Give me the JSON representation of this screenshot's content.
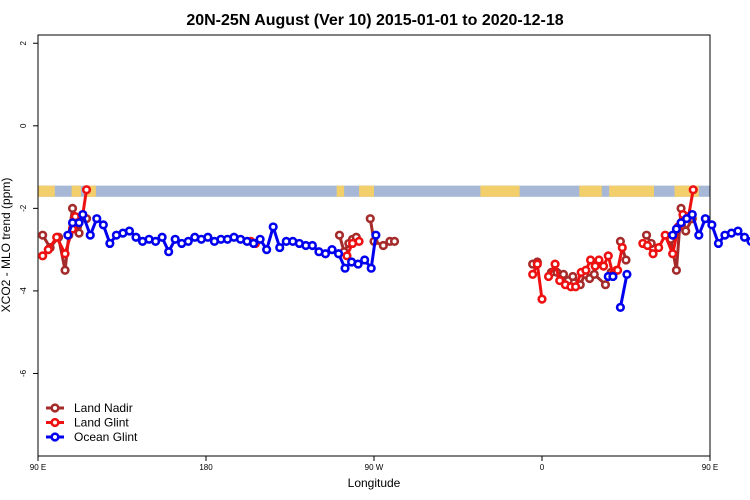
{
  "chart_data": {
    "type": "line",
    "title": "20N-25N August (Ver 10)   2015-01-01 to 2020-12-18",
    "xlabel": "Longitude",
    "ylabel": "XCO2 - MLO trend (ppm)",
    "xlim": [
      90,
      450
    ],
    "ylim": [
      -8,
      2.2
    ],
    "x_ticks": [
      {
        "value": 90,
        "label": "90 E"
      },
      {
        "value": 180,
        "label": "180"
      },
      {
        "value": 270,
        "label": "90 W"
      },
      {
        "value": 360,
        "label": "0"
      },
      {
        "value": 450,
        "label": "90 E"
      },
      {
        "value": 540,
        "label": "180"
      }
    ],
    "y_ticks": [
      {
        "value": 2,
        "label": "2"
      },
      {
        "value": 0,
        "label": "0"
      },
      {
        "value": -2,
        "label": "-2"
      },
      {
        "value": -4,
        "label": "-4"
      },
      {
        "value": -6,
        "label": "-6"
      }
    ],
    "land_band": {
      "y_top": -1.45,
      "y_bottom": -1.72,
      "ocean_color": "#a6b8d6",
      "land_color": "#f2cf6b"
    },
    "legend_position": "bottom-left",
    "series": [
      {
        "name": "Land Nadir",
        "color": "#a52a2a",
        "segments": [
          [
            [
              92.5,
              -2.65
            ],
            [
              96.5,
              -2.95
            ],
            [
              101,
              -2.7
            ],
            [
              104.5,
              -3.5
            ],
            [
              106.5,
              -2.65
            ],
            [
              108.5,
              -2.0
            ],
            [
              112,
              -2.6
            ],
            [
              114,
              -2.2
            ],
            [
              116,
              -2.25
            ]
          ],
          [
            [
              251.5,
              -2.65
            ],
            [
              254,
              -3.05
            ],
            [
              256.5,
              -2.85
            ],
            [
              258.5,
              -2.75
            ],
            [
              260.5,
              -2.7
            ]
          ],
          [
            [
              268,
              -2.25
            ],
            [
              270,
              -2.8
            ],
            [
              275,
              -2.9
            ],
            [
              278.5,
              -2.8
            ],
            [
              281,
              -2.8
            ]
          ],
          [
            [
              355,
              -3.35
            ],
            [
              357.5,
              -3.3
            ]
          ],
          [
            [
              365,
              -3.55
            ],
            [
              368,
              -3.55
            ],
            [
              371.5,
              -3.6
            ],
            [
              374,
              -3.75
            ],
            [
              376.5,
              -3.65
            ],
            [
              380.5,
              -3.85
            ],
            [
              383,
              -3.6
            ],
            [
              385.5,
              -3.7
            ],
            [
              388,
              -3.6
            ],
            [
              394,
              -3.85
            ],
            [
              397,
              -3.55
            ]
          ],
          [
            [
              402,
              -2.8
            ],
            [
              405,
              -3.25
            ]
          ],
          [
            [
              416,
              -2.65
            ],
            [
              418.5,
              -2.85
            ]
          ],
          [
            [
              429,
              -2.75
            ],
            [
              432,
              -3.5
            ],
            [
              434.5,
              -2.0
            ],
            [
              437,
              -2.55
            ],
            [
              440.5,
              -2.25
            ]
          ]
        ]
      },
      {
        "name": "Land Glint",
        "color": "#ee1111",
        "segments": [
          [
            [
              92.5,
              -3.15
            ],
            [
              95.5,
              -3.0
            ],
            [
              100,
              -2.7
            ],
            [
              104.5,
              -3.1
            ],
            [
              108.5,
              -2.5
            ],
            [
              110,
              -2.2
            ],
            [
              114,
              -2.15
            ],
            [
              116,
              -1.55
            ]
          ],
          [
            [
              204,
              -2.8
            ],
            [
              206.5,
              -2.85
            ]
          ],
          [
            [
              255.5,
              -3.15
            ],
            [
              258.5,
              -2.85
            ],
            [
              262,
              -2.8
            ]
          ],
          [
            [
              355,
              -3.6
            ],
            [
              357.5,
              -3.35
            ],
            [
              360,
              -4.2
            ]
          ],
          [
            [
              363.5,
              -3.65
            ],
            [
              367,
              -3.35
            ],
            [
              369.5,
              -3.75
            ],
            [
              372.5,
              -3.85
            ],
            [
              375.5,
              -3.9
            ],
            [
              378,
              -3.9
            ],
            [
              381,
              -3.55
            ],
            [
              383.5,
              -3.5
            ],
            [
              386,
              -3.25
            ],
            [
              388.5,
              -3.4
            ],
            [
              390.5,
              -3.25
            ],
            [
              393,
              -3.4
            ],
            [
              395.5,
              -3.15
            ],
            [
              398,
              -3.6
            ],
            [
              400,
              -3.5
            ]
          ],
          [
            [
              400.5,
              -3.5
            ],
            [
              403,
              -2.95
            ]
          ],
          [
            [
              414,
              -2.85
            ],
            [
              416.5,
              -2.9
            ],
            [
              419.5,
              -3.1
            ],
            [
              422.5,
              -2.95
            ],
            [
              426,
              -2.65
            ],
            [
              430,
              -3.1
            ],
            [
              433,
              -2.45
            ],
            [
              435.5,
              -2.15
            ],
            [
              438.5,
              -2.2
            ],
            [
              441,
              -1.55
            ]
          ]
        ]
      },
      {
        "name": "Ocean Glint",
        "color": "#0000ee",
        "segments": [
          [
            [
              106,
              -2.65
            ],
            [
              108.5,
              -2.35
            ],
            [
              112,
              -2.35
            ],
            [
              114,
              -2.15
            ],
            [
              118,
              -2.65
            ],
            [
              121.5,
              -2.25
            ],
            [
              125,
              -2.4
            ],
            [
              128.5,
              -2.85
            ],
            [
              132,
              -2.65
            ],
            [
              135.5,
              -2.6
            ],
            [
              139,
              -2.55
            ],
            [
              142.5,
              -2.7
            ],
            [
              146,
              -2.8
            ],
            [
              149.5,
              -2.75
            ],
            [
              153,
              -2.8
            ],
            [
              156.5,
              -2.7
            ],
            [
              160,
              -3.05
            ],
            [
              163.5,
              -2.75
            ],
            [
              167,
              -2.85
            ],
            [
              170.5,
              -2.8
            ],
            [
              174,
              -2.7
            ],
            [
              177.5,
              -2.75
            ],
            [
              181,
              -2.7
            ],
            [
              184.5,
              -2.8
            ],
            [
              188,
              -2.75
            ],
            [
              191.5,
              -2.75
            ],
            [
              195,
              -2.7
            ],
            [
              198.5,
              -2.75
            ],
            [
              202,
              -2.8
            ],
            [
              205.5,
              -2.85
            ],
            [
              209,
              -2.75
            ],
            [
              212.5,
              -3.0
            ],
            [
              216,
              -2.45
            ],
            [
              219.5,
              -2.95
            ],
            [
              223,
              -2.8
            ],
            [
              226.5,
              -2.8
            ],
            [
              230,
              -2.85
            ],
            [
              233.5,
              -2.9
            ],
            [
              237,
              -2.9
            ],
            [
              240.5,
              -3.05
            ],
            [
              244,
              -3.1
            ],
            [
              247.5,
              -3.0
            ],
            [
              251,
              -3.1
            ],
            [
              254.5,
              -3.45
            ],
            [
              258,
              -3.3
            ],
            [
              261.5,
              -3.35
            ],
            [
              265,
              -3.25
            ],
            [
              268.5,
              -3.45
            ],
            [
              271,
              -2.65
            ]
          ],
          [
            [
              395.5,
              -3.65
            ],
            [
              398,
              -3.65
            ]
          ],
          [
            [
              402,
              -4.4
            ],
            [
              405.5,
              -3.6
            ]
          ],
          [
            [
              430,
              -2.65
            ],
            [
              432,
              -2.5
            ],
            [
              434.5,
              -2.35
            ],
            [
              437.5,
              -2.25
            ],
            [
              440.5,
              -2.15
            ],
            [
              444,
              -2.65
            ],
            [
              447.5,
              -2.25
            ],
            [
              451,
              -2.4
            ],
            [
              454.5,
              -2.85
            ],
            [
              458,
              -2.65
            ],
            [
              461.5,
              -2.6
            ],
            [
              465,
              -2.55
            ],
            [
              468.5,
              -2.7
            ],
            [
              472,
              -2.8
            ],
            [
              475.5,
              -2.75
            ],
            [
              479,
              -2.8
            ]
          ]
        ]
      }
    ]
  }
}
